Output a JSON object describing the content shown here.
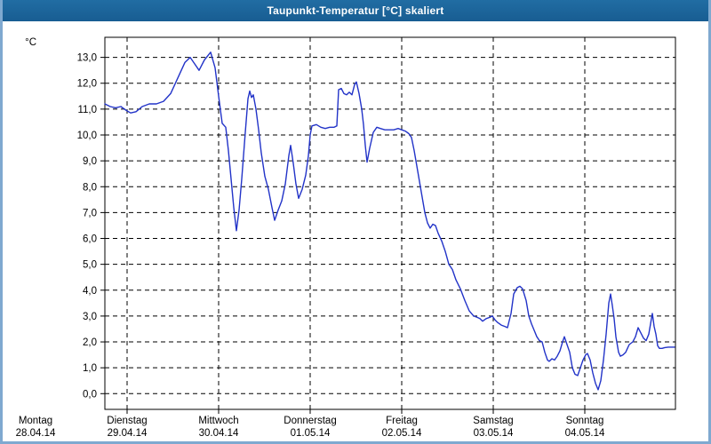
{
  "window": {
    "title": "Taupunkt-Temperatur [°C] skaliert",
    "titlebar_color": "#1d6699",
    "frame_color": "#7fa9d0"
  },
  "chart_data": {
    "type": "line",
    "title": "Taupunkt-Temperatur [°C] skaliert",
    "ylabel": "°C",
    "unit_label": "°C",
    "grid": "dashed-black-both-axes",
    "legend": "none",
    "background": "#ffffff",
    "line_color": "#2233c8",
    "ylim": [
      -0.6,
      13.8
    ],
    "y_tick_values": [
      13,
      12,
      11,
      10,
      9,
      8,
      7,
      6,
      5,
      4,
      3,
      2,
      1,
      0
    ],
    "y_tick_labels": [
      "13,0",
      "12,0",
      "11,0",
      "10,0",
      "9,0",
      "8,0",
      "7,0",
      "6,0",
      "5,0",
      "4,0",
      "3,0",
      "2,0",
      "1,0",
      "0,0"
    ],
    "x_days": [
      {
        "name": "Montag",
        "date": "28.04.14"
      },
      {
        "name": "Dienstag",
        "date": "29.04.14"
      },
      {
        "name": "Mittwoch",
        "date": "30.04.14"
      },
      {
        "name": "Donnerstag",
        "date": "01.05.14"
      },
      {
        "name": "Freitag",
        "date": "02.05.14"
      },
      {
        "name": "Samstag",
        "date": "03.05.14"
      },
      {
        "name": "Sonntag",
        "date": "04.05.14"
      }
    ],
    "x_axis_note": "x = time over 7 days; visible plot spans Mon 28.04.14 ~18:00 through Sun 04.05.14 24:00",
    "points_format": "[x_px_in_800px_image, dew_point_degC]; day-midnight ticks at x = 40+103*i",
    "series": [
      {
        "name": "Taupunkt-Temperatur",
        "color": "#2233c8",
        "points": [
          [
            118,
            11.2
          ],
          [
            124,
            11.1
          ],
          [
            130,
            11.05
          ],
          [
            136,
            11.1
          ],
          [
            142,
            10.95
          ],
          [
            147,
            10.85
          ],
          [
            153,
            10.9
          ],
          [
            160,
            11.1
          ],
          [
            168,
            11.2
          ],
          [
            176,
            11.2
          ],
          [
            184,
            11.3
          ],
          [
            192,
            11.6
          ],
          [
            200,
            12.2
          ],
          [
            208,
            12.8
          ],
          [
            214,
            13.0
          ],
          [
            219,
            12.75
          ],
          [
            224,
            12.5
          ],
          [
            230,
            12.9
          ],
          [
            237,
            13.2
          ],
          [
            242,
            12.6
          ],
          [
            246,
            11.5
          ],
          [
            250,
            10.45
          ],
          [
            254,
            10.3
          ],
          [
            257,
            9.4
          ],
          [
            260,
            8.3
          ],
          [
            263,
            7.2
          ],
          [
            266,
            6.3
          ],
          [
            269,
            7.1
          ],
          [
            272,
            8.3
          ],
          [
            276,
            10.1
          ],
          [
            279,
            11.4
          ],
          [
            281,
            11.7
          ],
          [
            283,
            11.45
          ],
          [
            285,
            11.55
          ],
          [
            288,
            11.0
          ],
          [
            291,
            10.2
          ],
          [
            294,
            9.3
          ],
          [
            298,
            8.4
          ],
          [
            302,
            7.9
          ],
          [
            306,
            7.2
          ],
          [
            309,
            6.7
          ],
          [
            313,
            7.1
          ],
          [
            317,
            7.45
          ],
          [
            321,
            8.1
          ],
          [
            325,
            9.2
          ],
          [
            327,
            9.6
          ],
          [
            330,
            8.9
          ],
          [
            333,
            8.1
          ],
          [
            336,
            7.55
          ],
          [
            340,
            7.9
          ],
          [
            344,
            8.45
          ],
          [
            347,
            9.2
          ],
          [
            349,
            10.0
          ],
          [
            351,
            10.35
          ],
          [
            356,
            10.4
          ],
          [
            361,
            10.3
          ],
          [
            366,
            10.25
          ],
          [
            371,
            10.3
          ],
          [
            376,
            10.3
          ],
          [
            379,
            10.35
          ],
          [
            381,
            11.75
          ],
          [
            384,
            11.8
          ],
          [
            387,
            11.6
          ],
          [
            390,
            11.55
          ],
          [
            393,
            11.65
          ],
          [
            396,
            11.55
          ],
          [
            399,
            11.95
          ],
          [
            401,
            12.05
          ],
          [
            404,
            11.6
          ],
          [
            407,
            11.0
          ],
          [
            409,
            10.4
          ],
          [
            411,
            9.6
          ],
          [
            413,
            8.95
          ],
          [
            416,
            9.5
          ],
          [
            420,
            10.1
          ],
          [
            424,
            10.3
          ],
          [
            428,
            10.25
          ],
          [
            433,
            10.2
          ],
          [
            438,
            10.2
          ],
          [
            443,
            10.2
          ],
          [
            448,
            10.25
          ],
          [
            452,
            10.2
          ],
          [
            456,
            10.15
          ],
          [
            460,
            10.05
          ],
          [
            463,
            9.9
          ],
          [
            466,
            9.4
          ],
          [
            470,
            8.6
          ],
          [
            474,
            7.8
          ],
          [
            478,
            7.0
          ],
          [
            481,
            6.6
          ],
          [
            484,
            6.4
          ],
          [
            487,
            6.55
          ],
          [
            490,
            6.5
          ],
          [
            493,
            6.2
          ],
          [
            497,
            5.9
          ],
          [
            501,
            5.5
          ],
          [
            505,
            5.0
          ],
          [
            509,
            4.8
          ],
          [
            513,
            4.4
          ],
          [
            518,
            4.05
          ],
          [
            523,
            3.6
          ],
          [
            528,
            3.2
          ],
          [
            533,
            3.0
          ],
          [
            537,
            2.95
          ],
          [
            540,
            2.9
          ],
          [
            543,
            2.8
          ],
          [
            547,
            2.9
          ],
          [
            551,
            2.95
          ],
          [
            554,
            3.0
          ],
          [
            557,
            2.85
          ],
          [
            560,
            2.75
          ],
          [
            564,
            2.65
          ],
          [
            568,
            2.6
          ],
          [
            571,
            2.55
          ],
          [
            575,
            3.1
          ],
          [
            578,
            3.85
          ],
          [
            582,
            4.1
          ],
          [
            585,
            4.15
          ],
          [
            588,
            4.05
          ],
          [
            592,
            3.6
          ],
          [
            595,
            3.0
          ],
          [
            598,
            2.7
          ],
          [
            601,
            2.45
          ],
          [
            604,
            2.2
          ],
          [
            607,
            2.05
          ],
          [
            610,
            2.0
          ],
          [
            613,
            1.6
          ],
          [
            616,
            1.3
          ],
          [
            618,
            1.25
          ],
          [
            621,
            1.35
          ],
          [
            624,
            1.3
          ],
          [
            627,
            1.45
          ],
          [
            630,
            1.65
          ],
          [
            633,
            2.0
          ],
          [
            635,
            2.2
          ],
          [
            638,
            1.9
          ],
          [
            641,
            1.6
          ],
          [
            644,
            1.0
          ],
          [
            647,
            0.75
          ],
          [
            650,
            0.7
          ],
          [
            653,
            1.0
          ],
          [
            656,
            1.3
          ],
          [
            659,
            1.5
          ],
          [
            661,
            1.55
          ],
          [
            664,
            1.3
          ],
          [
            667,
            0.8
          ],
          [
            670,
            0.4
          ],
          [
            673,
            0.15
          ],
          [
            676,
            0.5
          ],
          [
            679,
            1.3
          ],
          [
            682,
            2.3
          ],
          [
            685,
            3.5
          ],
          [
            687,
            3.85
          ],
          [
            689,
            3.4
          ],
          [
            691,
            2.9
          ],
          [
            693,
            2.2
          ],
          [
            696,
            1.6
          ],
          [
            698,
            1.45
          ],
          [
            701,
            1.5
          ],
          [
            704,
            1.6
          ],
          [
            708,
            1.9
          ],
          [
            712,
            2.0
          ],
          [
            715,
            2.2
          ],
          [
            718,
            2.55
          ],
          [
            721,
            2.35
          ],
          [
            724,
            2.15
          ],
          [
            727,
            2.05
          ],
          [
            730,
            2.3
          ],
          [
            732,
            2.7
          ],
          [
            734,
            3.1
          ],
          [
            736,
            2.6
          ],
          [
            738,
            2.3
          ],
          [
            740,
            1.85
          ],
          [
            742,
            1.75
          ],
          [
            745,
            1.75
          ],
          [
            748,
            1.78
          ],
          [
            752,
            1.8
          ],
          [
            756,
            1.8
          ],
          [
            759,
            1.8
          ]
        ]
      }
    ]
  }
}
